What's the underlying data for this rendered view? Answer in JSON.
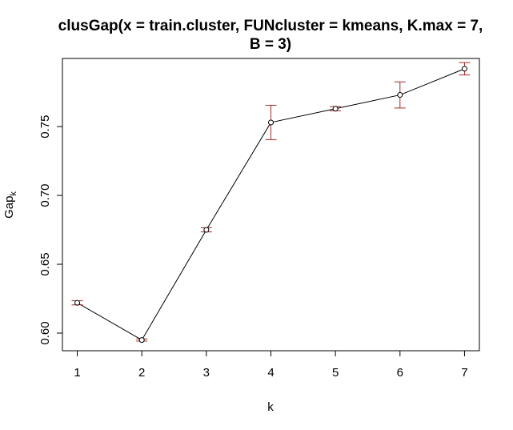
{
  "chart_data": {
    "type": "line",
    "title_lines": [
      "clusGap(x = train.cluster, FUNcluster = kmeans, K.max = 7,",
      "B = 3)"
    ],
    "xlabel": "k",
    "ylabel_main": "Gap",
    "ylabel_sub": "k",
    "x": [
      1,
      2,
      3,
      4,
      5,
      6,
      7
    ],
    "y": [
      0.622,
      0.595,
      0.675,
      0.753,
      0.763,
      0.773,
      0.792
    ],
    "se": [
      0.0015,
      0.0008,
      0.0015,
      0.0125,
      0.0015,
      0.0095,
      0.0045
    ],
    "xlim": [
      0.77,
      7.23
    ],
    "ylim": [
      0.5872,
      0.7995
    ],
    "xticks": [
      "1",
      "2",
      "3",
      "4",
      "5",
      "6",
      "7"
    ],
    "yticks": [
      "0.60",
      "0.65",
      "0.70",
      "0.75"
    ],
    "colors": {
      "line": "#000000",
      "error_bar": "#a52a2a",
      "point": "#000000"
    },
    "grid": false,
    "legend": "none"
  }
}
